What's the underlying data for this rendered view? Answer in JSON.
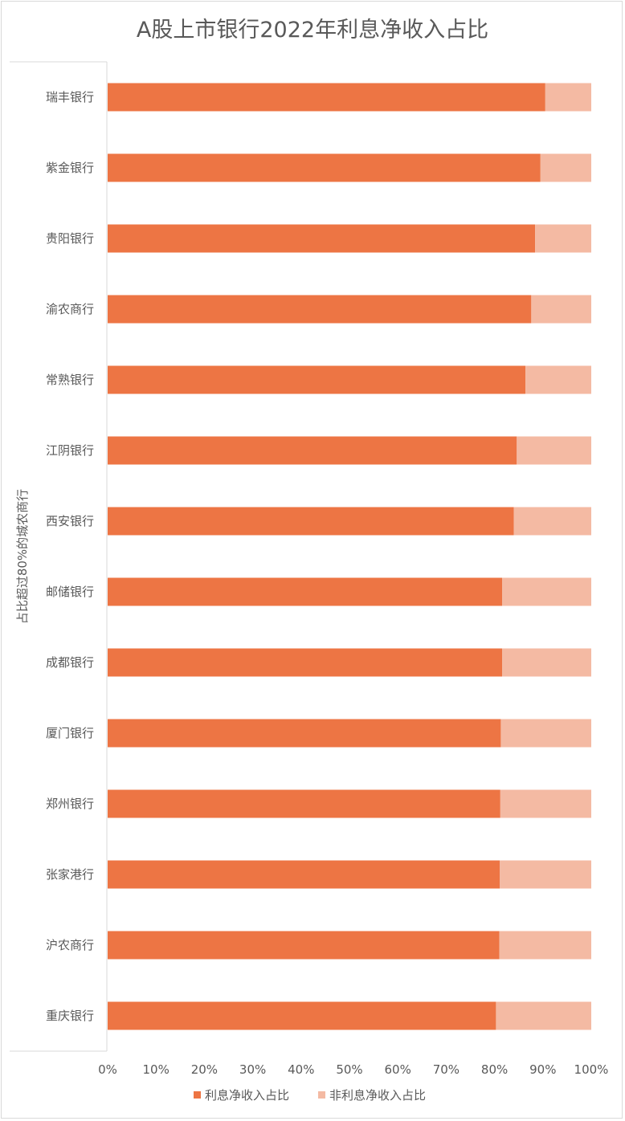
{
  "chart_data": {
    "type": "bar",
    "orientation": "horizontal",
    "stacked": true,
    "title": "A股上市银行2022年利息净收入占比",
    "group_label": "占比超过80%的城农商行",
    "categories": [
      "瑞丰银行",
      "紫金银行",
      "贵阳银行",
      "渝农商行",
      "常熟银行",
      "江阴银行",
      "西安银行",
      "邮储银行",
      "成都银行",
      "厦门银行",
      "郑州银行",
      "张家港行",
      "沪农商行",
      "重庆银行"
    ],
    "series": [
      {
        "name": "利息净收入占比",
        "color": "#ed7544",
        "values": [
          90.5,
          89.5,
          88.4,
          87.6,
          86.4,
          84.6,
          84.0,
          81.6,
          81.6,
          81.3,
          81.2,
          81.1,
          81.0,
          80.3
        ]
      },
      {
        "name": "非利息净收入占比",
        "color": "#f4baa3",
        "values": [
          9.5,
          10.5,
          11.6,
          12.4,
          13.6,
          15.4,
          16.0,
          18.4,
          18.4,
          18.7,
          18.8,
          18.9,
          19.0,
          19.7
        ]
      }
    ],
    "x_ticks": [
      "0%",
      "10%",
      "20%",
      "30%",
      "40%",
      "50%",
      "60%",
      "70%",
      "80%",
      "90%",
      "100%"
    ],
    "xlim": [
      0,
      100
    ],
    "grid": false,
    "legend": "bottom"
  }
}
